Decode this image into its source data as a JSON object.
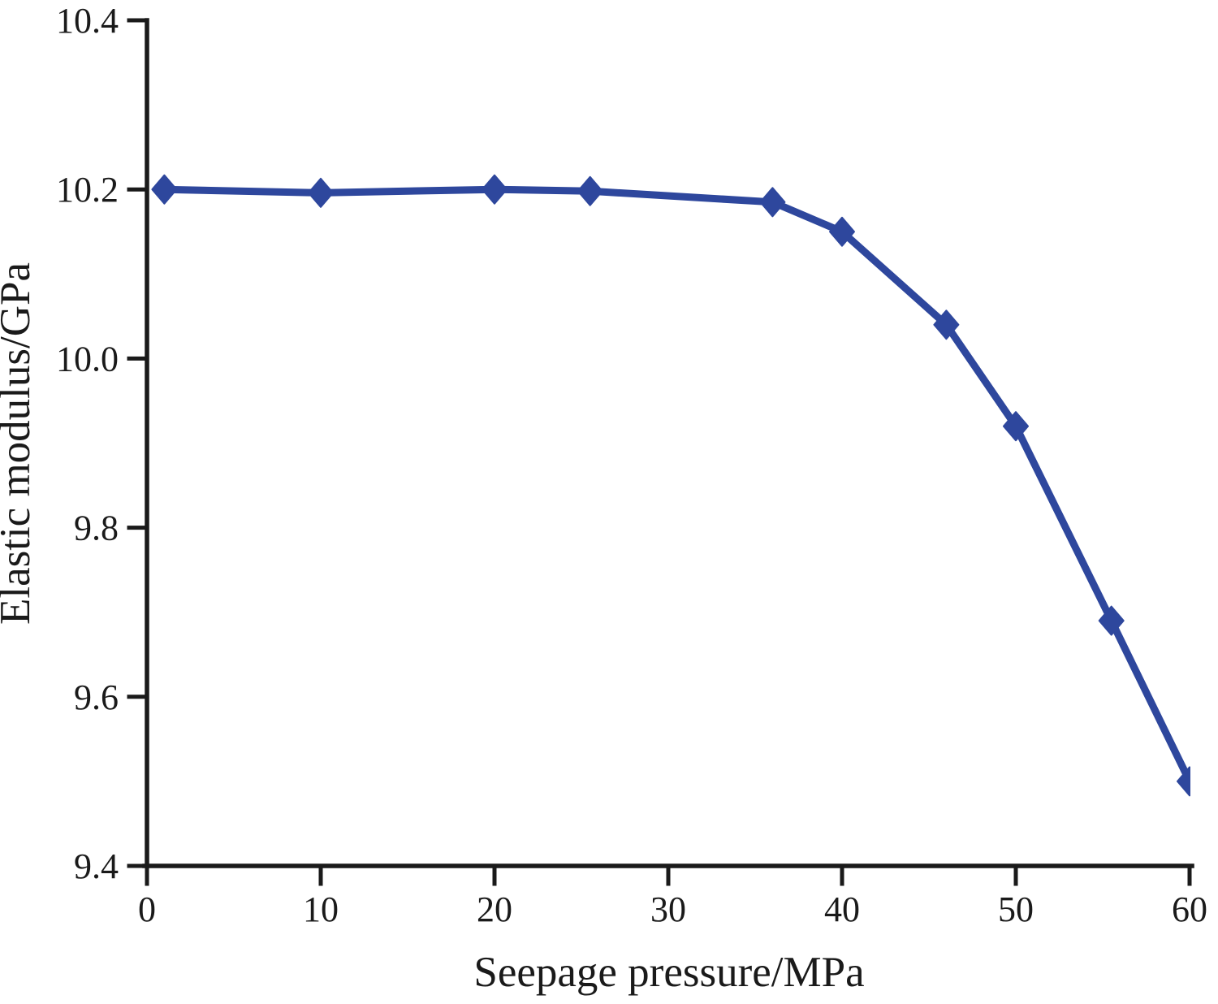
{
  "chart_data": {
    "type": "line",
    "title": "",
    "xlabel": "Seepage pressure/MPa",
    "ylabel": "Elastic modulus/GPa",
    "xlim": [
      0,
      60
    ],
    "ylim": [
      9.4,
      10.4
    ],
    "x_ticks": [
      0,
      10,
      20,
      30,
      40,
      50,
      60
    ],
    "x_tick_labels": [
      "0",
      "10",
      "20",
      "30",
      "40",
      "50",
      "60"
    ],
    "y_ticks": [
      10.4,
      10.2,
      10.0,
      9.8,
      9.6,
      9.4
    ],
    "y_tick_labels": [
      "10.4",
      "10.2",
      "10.0",
      "9.8",
      "9.6",
      "9.4"
    ],
    "grid": false,
    "legend": "none",
    "axis_color": "#1a1a1a",
    "series": [
      {
        "name": "elastic-modulus",
        "color": "#2e479d",
        "marker": "diamond",
        "x": [
          1,
          10,
          20,
          25.5,
          36,
          40,
          46,
          50,
          55.5,
          60
        ],
        "y": [
          10.2,
          10.196,
          10.2,
          10.198,
          10.185,
          10.15,
          10.04,
          9.92,
          9.69,
          9.5
        ]
      }
    ]
  }
}
